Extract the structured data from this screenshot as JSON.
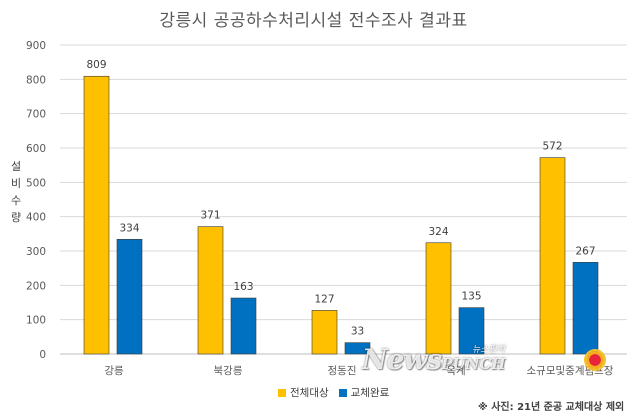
{
  "chart_data": {
    "type": "bar",
    "title": "강릉시 공공하수처리시설 전수조사 결과표",
    "ylabel": "설비수량",
    "xlabel": "",
    "ylim": [
      0,
      900
    ],
    "yticks": [
      0,
      100,
      200,
      300,
      400,
      500,
      600,
      700,
      800,
      900
    ],
    "grid": true,
    "legend_position": "bottom-center",
    "categories": [
      "강릉",
      "북강릉",
      "정동진",
      "옥계",
      "소규모및중계펌프장"
    ],
    "series": [
      {
        "name": "전체대상",
        "color": "#FFC000",
        "values": [
          809,
          371,
          127,
          324,
          572
        ]
      },
      {
        "name": "교체완료",
        "color": "#0070C0",
        "values": [
          334,
          163,
          33,
          135,
          267
        ]
      }
    ]
  },
  "caption": "※ 사진: 21년 준공 교체대상 제외",
  "watermark": {
    "text": "Newspunch",
    "sub": "뉴스펀치"
  }
}
